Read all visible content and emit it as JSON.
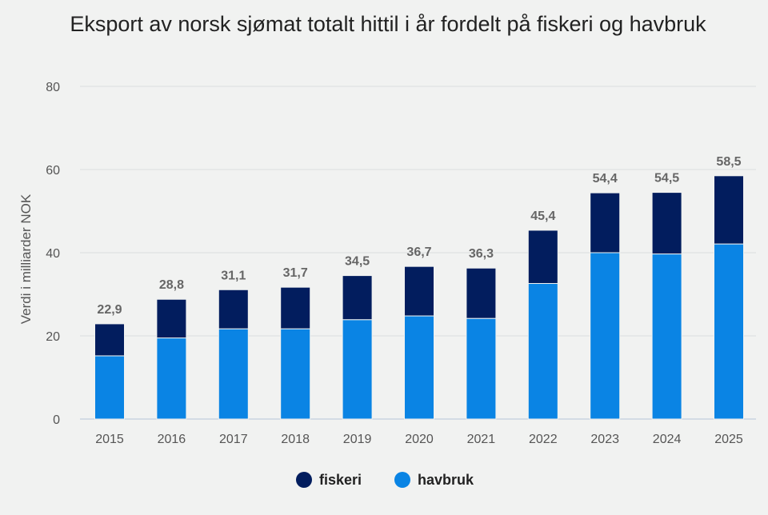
{
  "chart_data": {
    "type": "bar",
    "stacked": true,
    "title": "Eksport av norsk sjømat totalt hittil i år fordelt på fiskeri og havbruk",
    "xlabel": "",
    "ylabel": "Verdi i milliarder NOK",
    "ylim": [
      0,
      80
    ],
    "yticks": [
      0,
      20,
      40,
      60,
      80
    ],
    "grid": true,
    "legend_position": "bottom",
    "categories": [
      "2015",
      "2016",
      "2017",
      "2018",
      "2019",
      "2020",
      "2021",
      "2022",
      "2023",
      "2024",
      "2025"
    ],
    "series": [
      {
        "name": "havbruk",
        "color": "#0a84e4",
        "values": [
          15.2,
          19.5,
          21.7,
          21.7,
          23.9,
          24.8,
          24.2,
          32.6,
          40.0,
          39.7,
          42.1
        ]
      },
      {
        "name": "fiskeri",
        "color": "#021d5e",
        "values": [
          7.7,
          9.3,
          9.4,
          10.0,
          10.6,
          11.9,
          12.1,
          12.8,
          14.4,
          14.8,
          16.4
        ]
      }
    ],
    "totals_labels": [
      "22,9",
      "28,8",
      "31,1",
      "31,7",
      "34,5",
      "36,7",
      "36,3",
      "45,4",
      "54,4",
      "54,5",
      "58,5"
    ],
    "legend_order": [
      "fiskeri",
      "havbruk"
    ]
  }
}
